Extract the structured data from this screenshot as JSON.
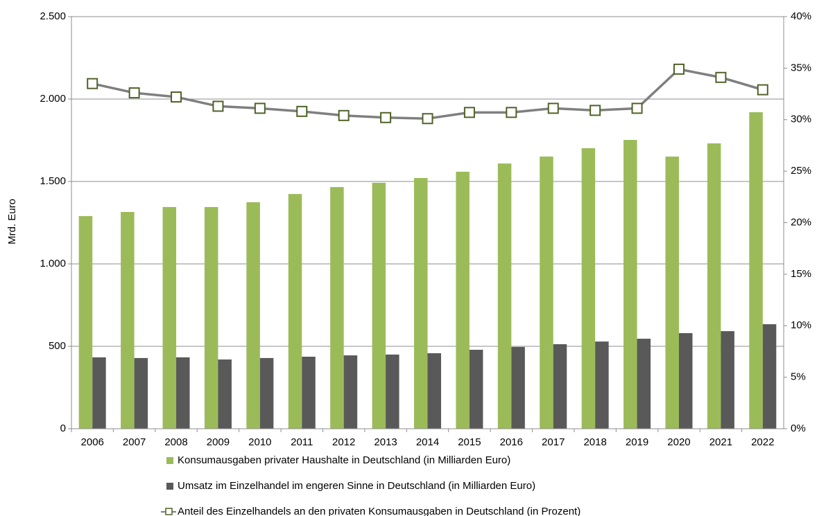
{
  "chart_data": {
    "type": "bar-line",
    "y_label": "Mrd. Euro",
    "categories": [
      "2006",
      "2007",
      "2008",
      "2009",
      "2010",
      "2011",
      "2012",
      "2013",
      "2014",
      "2015",
      "2016",
      "2017",
      "2018",
      "2019",
      "2020",
      "2021",
      "2022"
    ],
    "series": [
      {
        "name": "Konsumausgaben privater Haushalte in Deutschland (in Milliarden Euro)",
        "type": "bar",
        "color": "#9bbb59",
        "values": [
          1290,
          1315,
          1345,
          1345,
          1374,
          1424,
          1466,
          1492,
          1521,
          1559,
          1609,
          1651,
          1702,
          1752,
          1651,
          1731,
          1920
        ]
      },
      {
        "name": "Umsatz im Einzelhandel im engeren Sinne in Deutschland (in Milliarden Euro)",
        "type": "bar",
        "color": "#595959",
        "values": [
          433,
          429,
          433,
          420,
          429,
          437,
          445,
          450,
          458,
          479,
          496,
          513,
          529,
          546,
          580,
          592,
          634
        ]
      },
      {
        "name": "Anteil des Einzelhandels an den privaten Konsumausgaben in Deutschland (in Prozent)",
        "type": "line",
        "axis": "y2",
        "color": "#7f7f7f",
        "marker_color": "#4f6228",
        "values": [
          33.5,
          32.6,
          32.2,
          31.3,
          31.1,
          30.8,
          30.4,
          30.2,
          30.1,
          30.7,
          30.7,
          31.1,
          30.9,
          31.1,
          34.9,
          34.1,
          32.9
        ]
      }
    ],
    "ylim": [
      0,
      2500
    ],
    "yticks": [
      0,
      500,
      {
        "value": 1000,
        "label": "1.000"
      },
      {
        "value": 1500,
        "label": "1.500"
      },
      {
        "value": 2000,
        "label": "2.000"
      },
      {
        "value": 2500,
        "label": "2.500"
      }
    ],
    "y2lim": [
      0,
      40
    ],
    "y2ticks": [
      {
        "value": 0,
        "label": "0%"
      },
      {
        "value": 5,
        "label": "5%"
      },
      {
        "value": 10,
        "label": "10%"
      },
      {
        "value": 15,
        "label": "15%"
      },
      {
        "value": 20,
        "label": "20%"
      },
      {
        "value": 25,
        "label": "25%"
      },
      {
        "value": 30,
        "label": "30%"
      },
      {
        "value": 35,
        "label": "35%"
      },
      {
        "value": 40,
        "label": "40%"
      }
    ],
    "grid": true
  }
}
